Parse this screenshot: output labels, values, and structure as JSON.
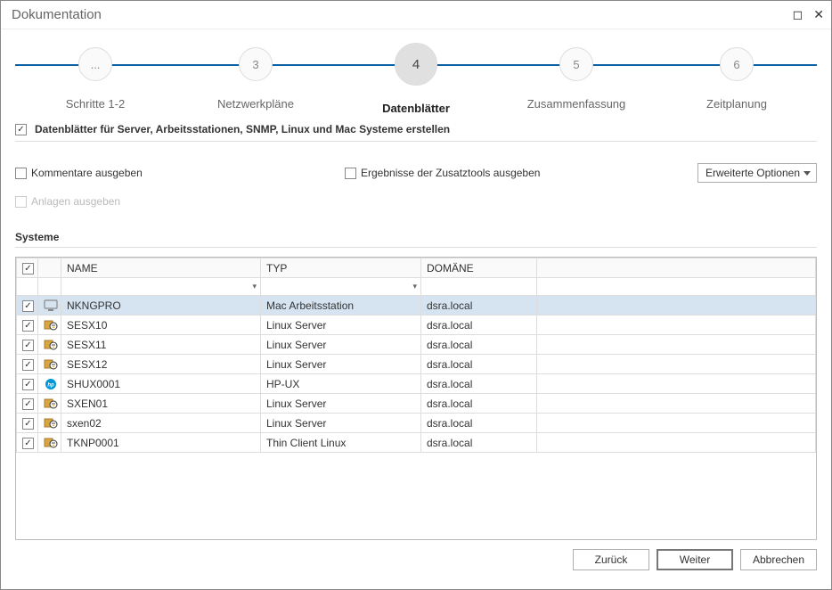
{
  "window": {
    "title": "Dokumentation"
  },
  "wizard": {
    "steps": [
      {
        "num": "...",
        "label": "Schritte 1-2",
        "active": false
      },
      {
        "num": "3",
        "label": "Netzwerkpläne",
        "active": false
      },
      {
        "num": "4",
        "label": "Datenblätter",
        "active": true
      },
      {
        "num": "5",
        "label": "Zusammenfassung",
        "active": false
      },
      {
        "num": "6",
        "label": "Zeitplanung",
        "active": false
      }
    ]
  },
  "options": {
    "main_checkbox_label": "Datenblätter für Server, Arbeitsstationen, SNMP, Linux und Mac Systeme erstellen",
    "main_checkbox_checked": true,
    "kommentare_label": "Kommentare ausgeben",
    "kommentare_checked": false,
    "ergebnisse_label": "Ergebnisse der Zusatztools ausgeben",
    "ergebnisse_checked": false,
    "anlagen_label": "Anlagen ausgeben",
    "anlagen_checked": false,
    "anlagen_disabled": true,
    "advanced_button": "Erweiterte Optionen"
  },
  "table": {
    "section_label": "Systeme",
    "header_check_checked": true,
    "columns": {
      "name": "NAME",
      "typ": "TYP",
      "domane": "DOMÄNE"
    },
    "rows": [
      {
        "checked": true,
        "icon": "monitor",
        "name": "NKNGPRO",
        "typ": "Mac Arbeitsstation",
        "dom": "dsra.local",
        "selected": true
      },
      {
        "checked": true,
        "icon": "linux",
        "name": "SESX10",
        "typ": "Linux Server",
        "dom": "dsra.local",
        "selected": false
      },
      {
        "checked": true,
        "icon": "linux",
        "name": "SESX11",
        "typ": "Linux Server",
        "dom": "dsra.local",
        "selected": false
      },
      {
        "checked": true,
        "icon": "linux",
        "name": "SESX12",
        "typ": "Linux Server",
        "dom": "dsra.local",
        "selected": false
      },
      {
        "checked": true,
        "icon": "hp",
        "name": "SHUX0001",
        "typ": "HP-UX",
        "dom": "dsra.local",
        "selected": false
      },
      {
        "checked": true,
        "icon": "linux",
        "name": "SXEN01",
        "typ": "Linux Server",
        "dom": "dsra.local",
        "selected": false
      },
      {
        "checked": true,
        "icon": "linux",
        "name": "sxen02",
        "typ": "Linux Server",
        "dom": "dsra.local",
        "selected": false
      },
      {
        "checked": true,
        "icon": "linux",
        "name": "TKNP0001",
        "typ": "Thin Client Linux",
        "dom": "dsra.local",
        "selected": false
      }
    ]
  },
  "footer": {
    "back": "Zurück",
    "next": "Weiter",
    "cancel": "Abbrechen"
  },
  "colors": {
    "wizard_line": "#0b61a4",
    "selected_row": "#d6e4f2",
    "hp_blue": "#0096d6"
  }
}
